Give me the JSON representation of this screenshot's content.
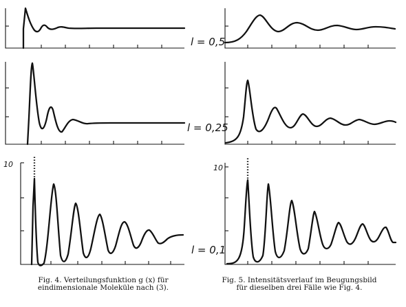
{
  "labels": {
    "top": "l = 0,5",
    "middle": "l = 0,25",
    "bottom": "l = 0,1"
  },
  "ytick_left": "10",
  "ytick_right": "10",
  "captions": {
    "fig4_line1": "Fig. 4.  Verteilungsfunktion g (x)  für",
    "fig4_line2": "eindimensionale  Moleküle  nach (3).",
    "fig5_line1": "Fig. 5. Intensitätsverlauf im Beugungsbild",
    "fig5_line2": "für dieselben drei Fälle wie Fig. 4."
  }
}
